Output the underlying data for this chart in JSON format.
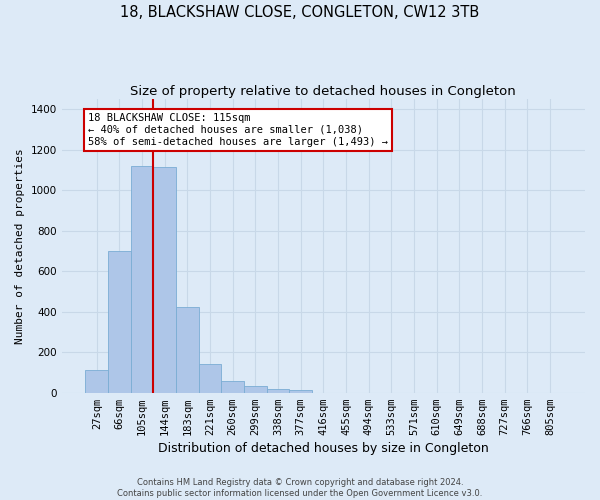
{
  "title": "18, BLACKSHAW CLOSE, CONGLETON, CW12 3TB",
  "subtitle": "Size of property relative to detached houses in Congleton",
  "xlabel": "Distribution of detached houses by size in Congleton",
  "ylabel": "Number of detached properties",
  "footer_line1": "Contains HM Land Registry data © Crown copyright and database right 2024.",
  "footer_line2": "Contains public sector information licensed under the Open Government Licence v3.0.",
  "categories": [
    "27sqm",
    "66sqm",
    "105sqm",
    "144sqm",
    "183sqm",
    "221sqm",
    "260sqm",
    "299sqm",
    "338sqm",
    "377sqm",
    "416sqm",
    "455sqm",
    "494sqm",
    "533sqm",
    "571sqm",
    "610sqm",
    "649sqm",
    "688sqm",
    "727sqm",
    "766sqm",
    "805sqm"
  ],
  "values": [
    110,
    700,
    1120,
    1115,
    425,
    140,
    60,
    35,
    20,
    15,
    0,
    0,
    0,
    0,
    0,
    0,
    0,
    0,
    0,
    0,
    0
  ],
  "bar_color": "#aec6e8",
  "bar_edge_color": "#7aadd4",
  "property_line_x": 2.5,
  "annotation_title": "18 BLACKSHAW CLOSE: 115sqm",
  "annotation_line1": "← 40% of detached houses are smaller (1,038)",
  "annotation_line2": "58% of semi-detached houses are larger (1,493) →",
  "annotation_box_color": "#ffffff",
  "annotation_box_edge_color": "#cc0000",
  "red_line_color": "#cc0000",
  "ylim": [
    0,
    1450
  ],
  "yticks": [
    0,
    200,
    400,
    600,
    800,
    1000,
    1200,
    1400
  ],
  "grid_color": "#c8d8e8",
  "bg_color": "#ddeaf7",
  "title_fontsize": 10.5,
  "subtitle_fontsize": 9.5,
  "ylabel_fontsize": 8,
  "xlabel_fontsize": 9,
  "tick_fontsize": 7.5,
  "footer_fontsize": 6,
  "annotation_fontsize": 7.5
}
